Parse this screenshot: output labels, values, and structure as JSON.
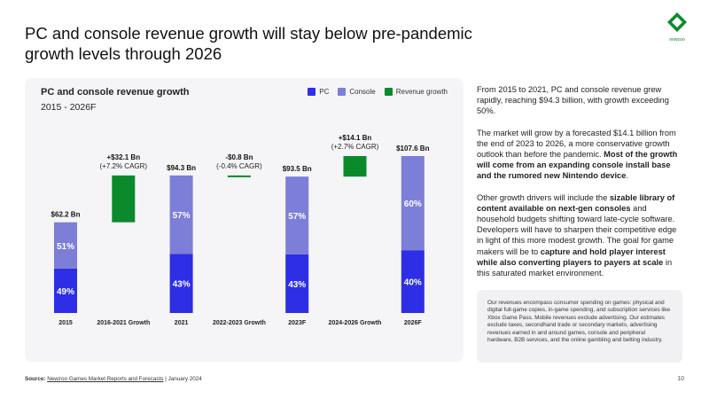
{
  "slide": {
    "title": "PC and console revenue growth will stay below pre-pandemic growth levels through 2026",
    "page_number": "10",
    "logo_text": "newzoo"
  },
  "chart_data": {
    "type": "bar",
    "subtype": "waterfall-stacked",
    "title": "PC and console revenue growth",
    "subtitle": "2015 - 2026F",
    "legend": [
      {
        "name": "PC",
        "color": "#2d2ee6"
      },
      {
        "name": "Console",
        "color": "#7c7ed8"
      },
      {
        "name": "Revenue growth",
        "color": "#0b8a2c"
      }
    ],
    "units": "$ Bn",
    "ylim": [
      0,
      110
    ],
    "bars": [
      {
        "label": "2015",
        "kind": "total",
        "total": 62.2,
        "pc_share": 49,
        "console_share": 51,
        "value_label": "$62.2 Bn",
        "pc_label": "49%",
        "console_label": "51%"
      },
      {
        "label": "2016-2021 Growth",
        "kind": "growth",
        "start": 62.2,
        "end": 94.3,
        "value_label": "+$32.1 Bn",
        "sub_label": "(+7.2% CAGR)"
      },
      {
        "label": "2021",
        "kind": "total",
        "total": 94.3,
        "pc_share": 43,
        "console_share": 57,
        "value_label": "$94.3 Bn",
        "pc_label": "43%",
        "console_label": "57%"
      },
      {
        "label": "2022-2023 Growth",
        "kind": "growth",
        "start": 94.3,
        "end": 93.5,
        "value_label": "-$0.8 Bn",
        "sub_label": "(-0.4% CAGR)"
      },
      {
        "label": "2023F",
        "kind": "total",
        "total": 93.5,
        "pc_share": 43,
        "console_share": 57,
        "value_label": "$93.5 Bn",
        "pc_label": "43%",
        "console_label": "57%"
      },
      {
        "label": "2024-2026 Growth",
        "kind": "growth",
        "start": 93.5,
        "end": 107.6,
        "value_label": "+$14.1 Bn",
        "sub_label": "(+2.7% CAGR)"
      },
      {
        "label": "2026F",
        "kind": "total",
        "total": 107.6,
        "pc_share": 40,
        "console_share": 60,
        "value_label": "$107.6 Bn",
        "pc_label": "40%",
        "console_label": "60%"
      }
    ]
  },
  "body": {
    "p1": "From 2015 to 2021, PC and console revenue grew rapidly, reaching $94.3 billion, with growth exceeding 50%.",
    "p2_a": "The market will grow by a forecasted $14.1 billion from the end of 2023 to 2026, a more conservative growth outlook than before the pandemic. ",
    "p2_b": "Most of the growth will come from an expanding console install base and the rumored new Nintendo device",
    "p2_c": ".",
    "p3_a": "Other growth drivers will include the ",
    "p3_b": "sizable library of content available on next-gen consoles",
    "p3_c": " and household budgets shifting toward late-cycle software. Developers will have to sharpen their competitive edge in light of this more modest growth. The goal for game makers will be to ",
    "p3_d": "capture and hold player interest while also converting players to payers at scale",
    "p3_e": " in this saturated market environment."
  },
  "note": {
    "text": "Our revenues encompass consumer spending on games: physical and digital full-game copies, in-game spending, and subscription services like Xbox Game Pass. Mobile revenues exclude advertising. Our estimates exclude taxes, secondhand trade or secondary markets, advertising revenues earned in and around games, console and peripheral hardware, B2B services, and the online gambling and betting industry."
  },
  "footer": {
    "source_label": "Source:",
    "source_link": "Newzoo Games Market Reports and Forecasts",
    "source_date": " | January 2024"
  }
}
